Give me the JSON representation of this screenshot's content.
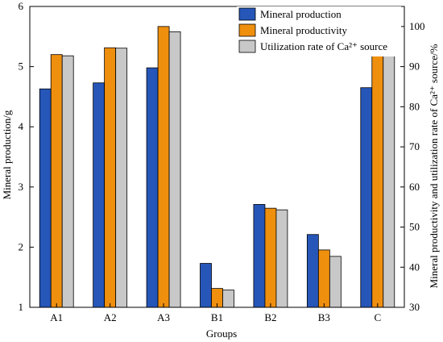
{
  "chart_data": {
    "type": "bar",
    "categories": [
      "A1",
      "A2",
      "A3",
      "B1",
      "B2",
      "B3",
      "C"
    ],
    "series": [
      {
        "name": "Mineral production",
        "axis": "left",
        "color": "#2656b8",
        "values": [
          4.63,
          4.73,
          4.98,
          1.73,
          2.71,
          2.21,
          4.65
        ]
      },
      {
        "name": "Mineral productivity",
        "axis": "right",
        "color": "#ef8f0e",
        "values": [
          93.0,
          94.7,
          100.0,
          34.7,
          54.7,
          44.3,
          93.3
        ]
      },
      {
        "name": "Utilization rate of Ca²⁺ source",
        "axis": "right",
        "color": "#c8c8c8",
        "values": [
          92.7,
          94.6,
          98.7,
          34.3,
          54.3,
          42.7,
          93.0
        ]
      }
    ],
    "xlabel": "Groups",
    "ylabel_left": "Mineral production/g",
    "ylabel_right": "Mineral productivity and utilization rate of Ca²⁺ source/%",
    "ylim_left": [
      1,
      6
    ],
    "ylim_right": [
      30,
      105
    ],
    "yticks_left": [
      1,
      2,
      3,
      4,
      5,
      6
    ],
    "yticks_right": [
      30,
      40,
      50,
      60,
      70,
      80,
      90,
      100
    ],
    "legend_position": "top-right",
    "grid": false
  }
}
